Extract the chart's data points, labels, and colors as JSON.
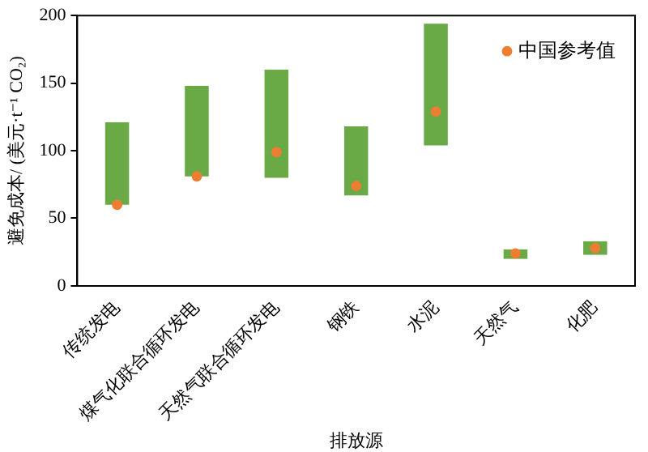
{
  "chart_data": {
    "type": "bar",
    "xlabel": "排放源",
    "ylabel": "避免成本/ (美元·t⁻¹ CO₂)",
    "categories": [
      "传统发电",
      "煤气化联合循环发电",
      "天然气联合循环发电",
      "钢铁",
      "水泥",
      "天然气",
      "化肥"
    ],
    "series": [
      {
        "color": "#6aaa46",
        "base": [
          60,
          81,
          80,
          67,
          104,
          20,
          23
        ],
        "values": [
          61,
          67,
          80,
          51,
          90,
          7,
          10
        ]
      },
      {
        "type": "scatter",
        "name": "中国参考值",
        "color": "#ed7d31",
        "values": [
          60,
          81,
          99,
          74,
          129,
          24,
          28
        ]
      }
    ],
    "ylim": [
      0,
      200
    ],
    "yticks": [
      0,
      50,
      100,
      150,
      200
    ],
    "grid": false,
    "legend": "top right",
    "marker": "circle"
  }
}
